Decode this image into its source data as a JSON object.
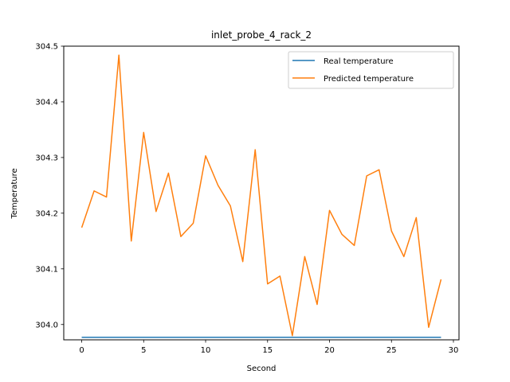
{
  "chart_data": {
    "type": "line",
    "title": "inlet_probe_4_rack_2",
    "xlabel": "Second",
    "ylabel": "Temperature",
    "xlim": [
      -1.45,
      30.45
    ],
    "ylim": [
      303.9725,
      304.5
    ],
    "x_ticks": [
      0,
      5,
      10,
      15,
      20,
      25,
      30
    ],
    "y_ticks": [
      304.0,
      304.1,
      304.2,
      304.3,
      304.4,
      304.5
    ],
    "x_tick_labels": [
      "0",
      "5",
      "10",
      "15",
      "20",
      "25",
      "30"
    ],
    "y_tick_labels": [
      "304.0",
      "304.1",
      "304.2",
      "304.3",
      "304.4",
      "304.5"
    ],
    "legend_position": "top-right",
    "grid": false,
    "x": [
      0,
      1,
      2,
      3,
      4,
      5,
      6,
      7,
      8,
      9,
      10,
      11,
      12,
      13,
      14,
      15,
      16,
      17,
      18,
      19,
      20,
      21,
      22,
      23,
      24,
      25,
      26,
      27,
      28,
      29
    ],
    "series": [
      {
        "name": "Real temperature",
        "color": "#1f77b4",
        "values": [
          303.977,
          303.977,
          303.977,
          303.977,
          303.977,
          303.977,
          303.977,
          303.977,
          303.977,
          303.977,
          303.977,
          303.977,
          303.977,
          303.977,
          303.977,
          303.977,
          303.977,
          303.977,
          303.977,
          303.977,
          303.977,
          303.977,
          303.977,
          303.977,
          303.977,
          303.977,
          303.977,
          303.977,
          303.977,
          303.977
        ]
      },
      {
        "name": "Predicted temperature",
        "color": "#ff7f0e",
        "values": [
          304.174,
          304.24,
          304.229,
          304.484,
          304.15,
          304.345,
          304.203,
          304.272,
          304.158,
          304.182,
          304.303,
          304.25,
          304.213,
          304.113,
          304.314,
          304.073,
          304.087,
          303.98,
          304.122,
          304.036,
          304.205,
          304.162,
          304.142,
          304.267,
          304.278,
          304.168,
          304.122,
          304.192,
          303.995,
          304.081
        ]
      }
    ]
  }
}
